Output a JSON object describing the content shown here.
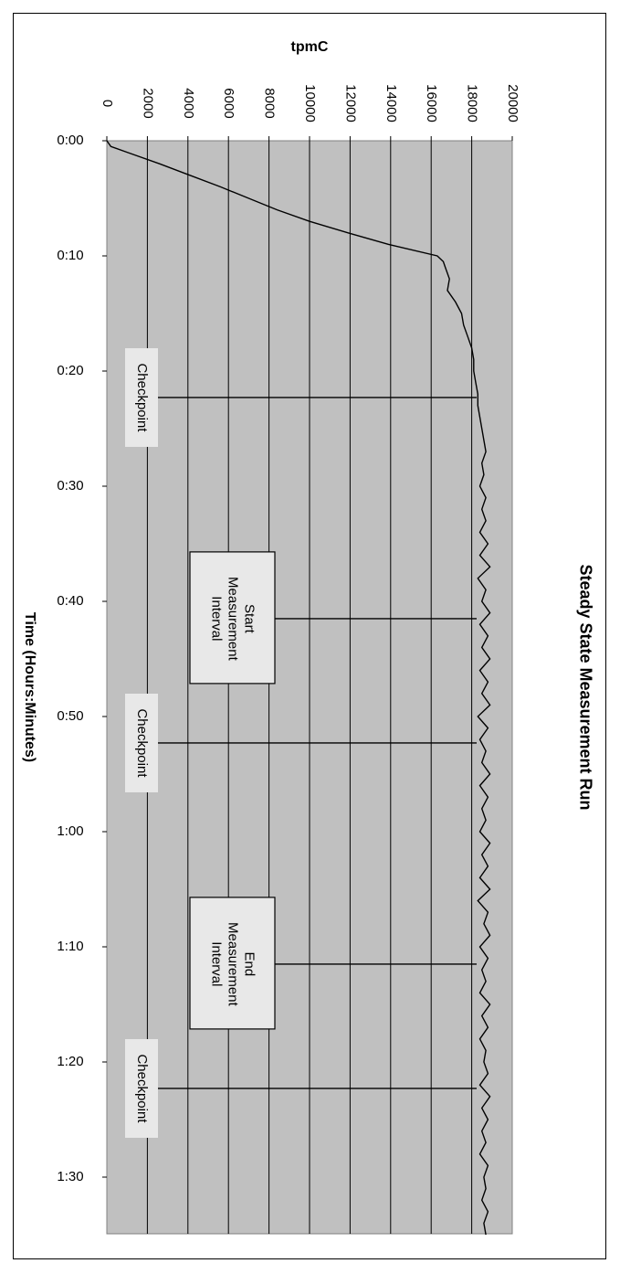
{
  "chart_data": {
    "type": "line",
    "title": "Steady State Measurement Run",
    "xlabel": "Time (Hours:Minutes)",
    "ylabel": "tpmC",
    "xlim_minutes": [
      0,
      95
    ],
    "ylim": [
      0,
      20000
    ],
    "x_ticks": [
      "0:00",
      "0:10",
      "0:20",
      "0:30",
      "0:40",
      "0:50",
      "1:00",
      "1:10",
      "1:20",
      "1:30"
    ],
    "y_ticks": [
      "0",
      "2000",
      "4000",
      "6000",
      "8000",
      "10000",
      "12000",
      "14000",
      "16000",
      "18000",
      "20000"
    ],
    "grid": true,
    "orientation": "rotated 90 degrees clockwise",
    "series": [
      {
        "x_minutes": [
          0,
          0.5,
          1,
          2,
          3,
          4,
          5,
          6,
          7,
          8,
          9,
          10,
          10.5,
          11,
          12,
          13,
          14,
          15,
          16,
          17,
          18,
          19,
          20,
          21,
          22,
          23,
          24,
          25,
          26,
          27,
          28,
          29,
          30,
          31,
          32,
          33,
          34,
          35,
          36,
          37,
          38,
          39,
          40,
          41,
          42,
          43,
          44,
          45,
          46,
          47,
          48,
          49,
          50,
          51,
          52,
          53,
          54,
          55,
          56,
          57,
          58,
          59,
          60,
          61,
          62,
          63,
          64,
          65,
          66,
          67,
          68,
          69,
          70,
          71,
          72,
          73,
          74,
          75,
          76,
          77,
          78,
          79,
          80,
          81,
          82,
          83,
          84,
          85,
          86,
          87,
          88,
          89,
          90,
          91,
          92,
          93,
          94,
          95
        ],
        "values": [
          0,
          200,
          1000,
          2600,
          4100,
          5600,
          7000,
          8400,
          10000,
          11900,
          13900,
          16300,
          16600,
          16700,
          16900,
          16800,
          17200,
          17500,
          17600,
          17800,
          18000,
          18100,
          18100,
          18200,
          18300,
          18300,
          18400,
          18500,
          18600,
          18700,
          18500,
          18600,
          18400,
          18700,
          18500,
          18700,
          18400,
          18800,
          18400,
          18900,
          18300,
          18700,
          18500,
          18900,
          18400,
          18800,
          18500,
          18900,
          18400,
          18800,
          18500,
          18900,
          18300,
          18800,
          18400,
          18700,
          18500,
          18900,
          18400,
          18800,
          18500,
          18700,
          18400,
          18900,
          18500,
          18800,
          18400,
          18900,
          18300,
          18800,
          18600,
          18900,
          18400,
          18800,
          18500,
          18700,
          18400,
          18900,
          18500,
          18800,
          18400,
          18700,
          18600,
          18800,
          18400,
          18900,
          18500,
          18800,
          18500,
          18700,
          18400,
          18800,
          18600,
          18700,
          18500,
          18800,
          18600,
          18700
        ]
      }
    ],
    "annotations": [
      {
        "label": "Checkpoint",
        "x_minutes": 22.3
      },
      {
        "label": "Start Measurement Interval",
        "lines": [
          "Start",
          "Measurement",
          "Interval"
        ],
        "x_minutes": 41.5
      },
      {
        "label": "Checkpoint",
        "x_minutes": 52.3
      },
      {
        "label": "End Measurement Interval",
        "lines": [
          "End",
          "Measurement",
          "Interval"
        ],
        "x_minutes": 71.5
      },
      {
        "label": "Checkpoint",
        "x_minutes": 82.3
      }
    ],
    "colors": {
      "plot_background": "#c0c0c0",
      "line": "#000000",
      "annotation_box": "#e8e8e8"
    }
  }
}
